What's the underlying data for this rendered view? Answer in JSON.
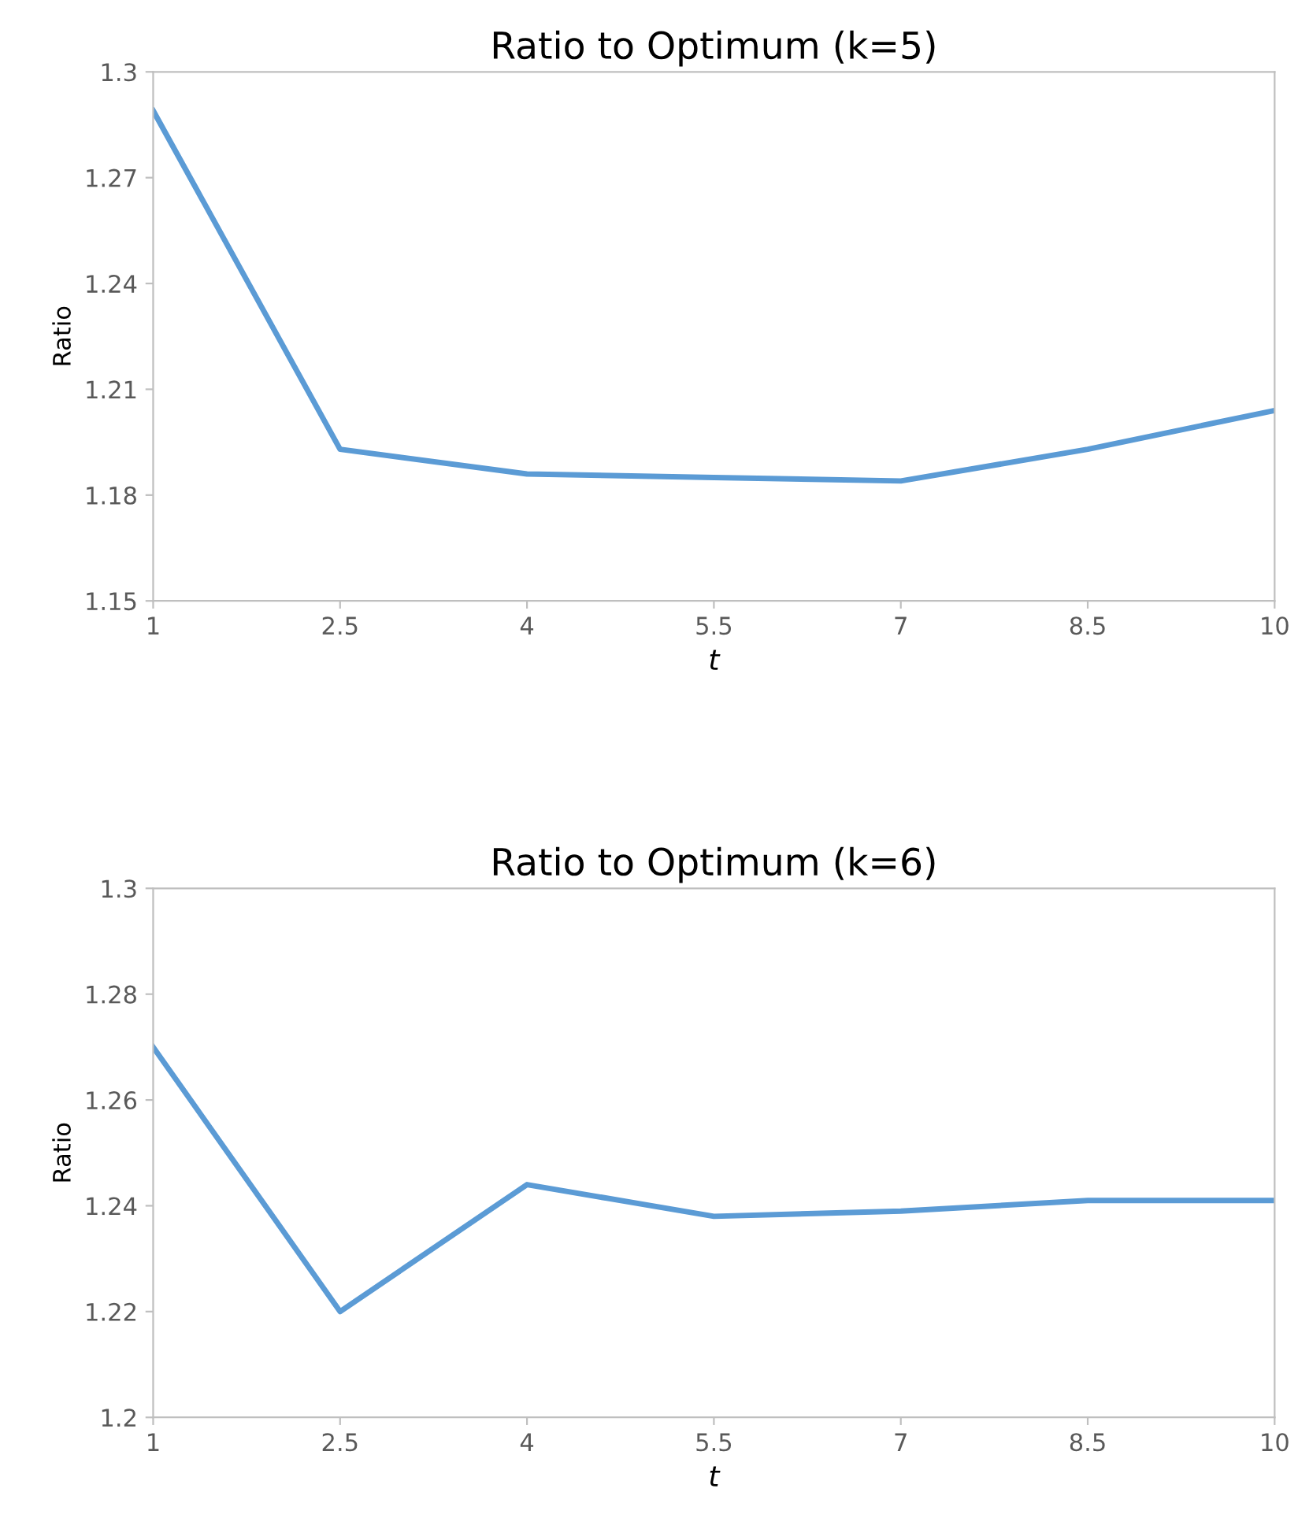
{
  "chart_data": [
    {
      "type": "line",
      "title": "Ratio to Optimum (k=5)",
      "xlabel": "t",
      "ylabel": "Ratio",
      "x": [
        1,
        2.5,
        4,
        5.5,
        7,
        8.5,
        10
      ],
      "series": [
        {
          "color": "#5b9bd5",
          "values": [
            1.289,
            1.193,
            1.186,
            1.185,
            1.184,
            1.193,
            1.204
          ]
        }
      ],
      "xlim": [
        1,
        10
      ],
      "xticks": [
        1,
        2.5,
        4,
        5.5,
        7,
        8.5,
        10
      ],
      "ylim": [
        1.15,
        1.3
      ],
      "yticks": [
        1.15,
        1.18,
        1.21,
        1.24,
        1.27,
        1.3
      ],
      "grid": false,
      "legend": false,
      "marker": "none",
      "line_style": "solid"
    },
    {
      "type": "line",
      "title": "Ratio to Optimum (k=6)",
      "xlabel": "t",
      "ylabel": "Ratio",
      "x": [
        1,
        2.5,
        4,
        5.5,
        7,
        8.5,
        10
      ],
      "series": [
        {
          "color": "#5b9bd5",
          "values": [
            1.27,
            1.22,
            1.244,
            1.238,
            1.239,
            1.241,
            1.241
          ]
        }
      ],
      "xlim": [
        1,
        10
      ],
      "xticks": [
        1,
        2.5,
        4,
        5.5,
        7,
        8.5,
        10
      ],
      "ylim": [
        1.2,
        1.3
      ],
      "yticks": [
        1.2,
        1.22,
        1.24,
        1.26,
        1.28,
        1.3
      ],
      "grid": false,
      "legend": false,
      "marker": "none",
      "line_style": "solid"
    }
  ]
}
